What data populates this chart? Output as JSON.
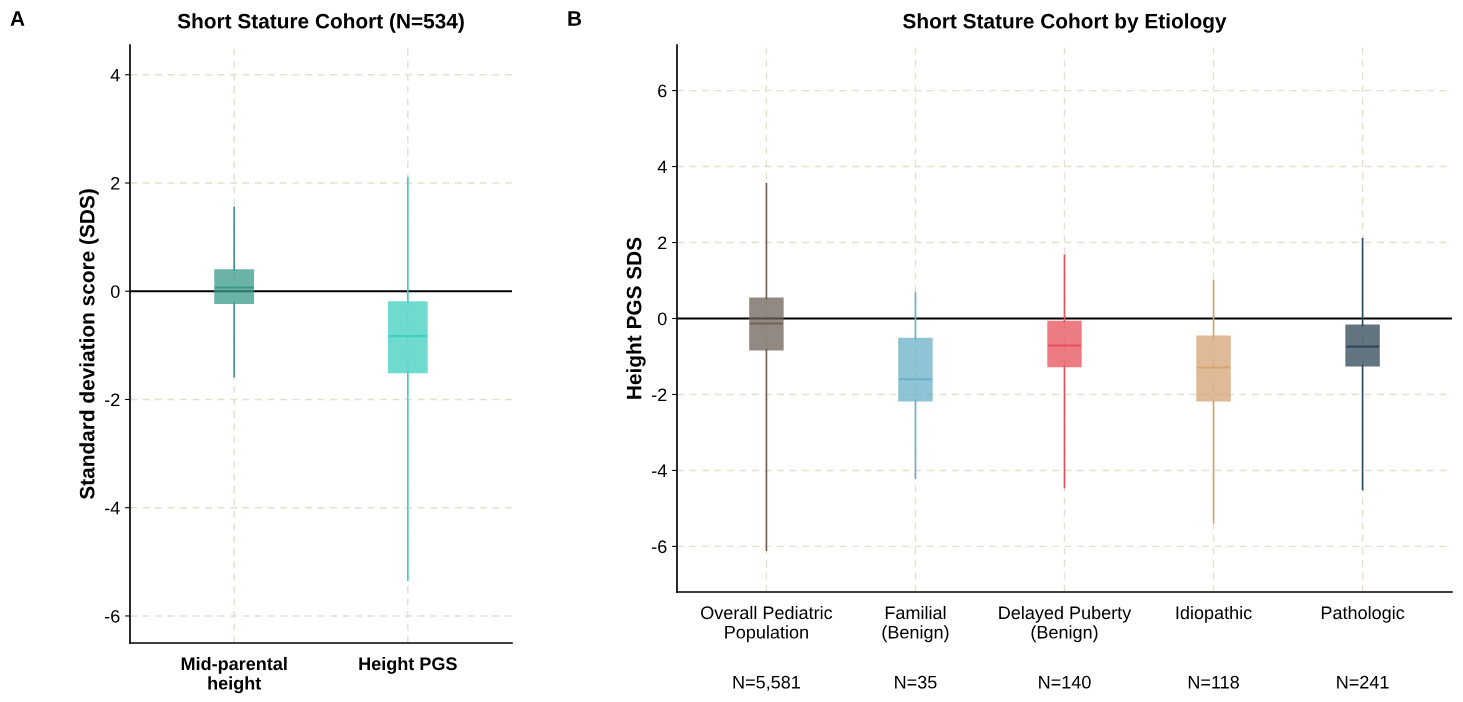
{
  "chart_data": [
    {
      "type": "box",
      "title": "Short Stature Cohort (N=534)",
      "ylabel": "Standard deviation score (SDS)",
      "annotations": [
        "A"
      ],
      "categories": [
        "Mid-parental\nheight",
        "Height PGS"
      ],
      "colors": [
        "#3a9a8a",
        "#40d0c0"
      ],
      "boxes": [
        {
          "low": -1.58,
          "q1": -0.22,
          "median": 0.07,
          "q3": 0.39,
          "high": 1.55
        },
        {
          "low": -5.34,
          "q1": -1.5,
          "median": -0.83,
          "q3": -0.2,
          "high": 2.1
        }
      ],
      "ylim": [
        -6.5,
        4.55
      ],
      "yticks": [
        -6,
        -4,
        -2,
        0,
        2,
        4
      ],
      "ref_lines": [
        {
          "axis": "y",
          "value": 0,
          "color": "#000000"
        }
      ],
      "grid": true
    },
    {
      "type": "box",
      "title": "Short Stature Cohort by Etiology",
      "ylabel": "Height PGS SDS",
      "annotations": [
        "B",
        "N=5,581",
        "N=35",
        "N=140",
        "N=118",
        "N=241"
      ],
      "categories": [
        "Overall Pediatric\nPopulation",
        "Familial\n(Benign)",
        "Delayed Puberty\n(Benign)",
        "Idiopathic",
        "Pathologic"
      ],
      "colors": [
        "#6e6259",
        "#6ab0c8",
        "#e8505b",
        "#d4a373",
        "#2f4858"
      ],
      "boxes": [
        {
          "low": -6.1,
          "q1": -0.82,
          "median": -0.13,
          "q3": 0.53,
          "high": 3.55
        },
        {
          "low": -4.2,
          "q1": -2.16,
          "median": -1.6,
          "q3": -0.53,
          "high": 0.68
        },
        {
          "low": -4.45,
          "q1": -1.26,
          "median": -0.71,
          "q3": -0.08,
          "high": 1.66
        },
        {
          "low": -5.37,
          "q1": -2.16,
          "median": -1.29,
          "q3": -0.47,
          "high": 1.0
        },
        {
          "low": -4.5,
          "q1": -1.24,
          "median": -0.74,
          "q3": -0.18,
          "high": 2.1
        }
      ],
      "ylim": [
        -7.2,
        7.2
      ],
      "yticks": [
        -6,
        -4,
        -2,
        0,
        2,
        4,
        6
      ],
      "ref_lines": [
        {
          "axis": "y",
          "value": 0,
          "color": "#000000"
        }
      ],
      "grid": true
    }
  ]
}
